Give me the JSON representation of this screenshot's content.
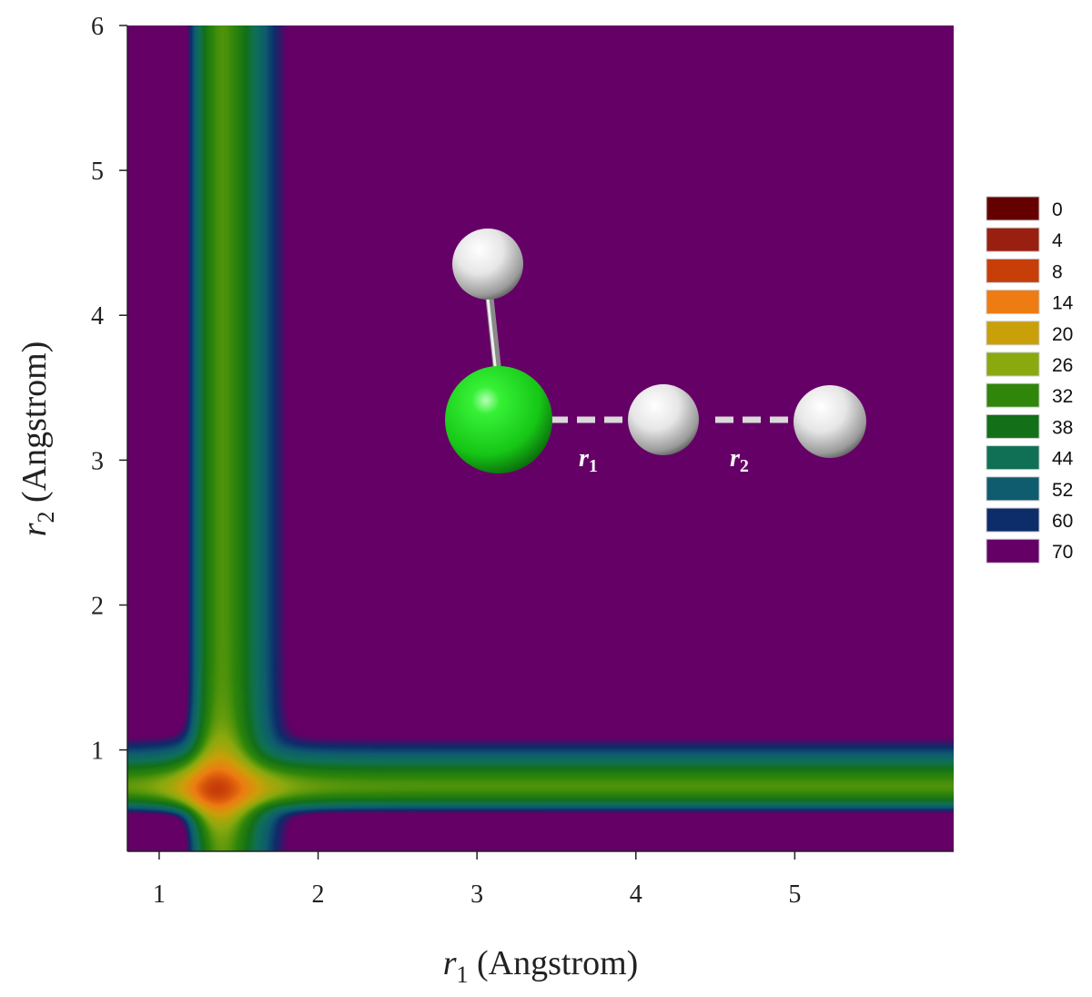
{
  "chart_data": {
    "type": "heatmap",
    "xlabel": {
      "var": "r",
      "sub": "1",
      "unit": " (Angstrom)"
    },
    "ylabel": {
      "var": "r",
      "sub": "2",
      "unit": " (Angstrom)"
    },
    "xlim": [
      0.8,
      6.0
    ],
    "ylim": [
      0.3,
      6.0
    ],
    "xticks": [
      1,
      2,
      3,
      4,
      5
    ],
    "yticks": [
      1,
      2,
      3,
      4,
      5,
      6
    ],
    "legend": {
      "placement": "right",
      "levels": [
        {
          "label": "0",
          "color": "#650000"
        },
        {
          "label": "4",
          "color": "#992010"
        },
        {
          "label": "8",
          "color": "#c83e08"
        },
        {
          "label": "14",
          "color": "#ee7c12"
        },
        {
          "label": "20",
          "color": "#c9a009"
        },
        {
          "label": "26",
          "color": "#8aa90e"
        },
        {
          "label": "32",
          "color": "#2f860a"
        },
        {
          "label": "38",
          "color": "#136f18"
        },
        {
          "label": "44",
          "color": "#0f7055"
        },
        {
          "label": "52",
          "color": "#0e5c6e"
        },
        {
          "label": "60",
          "color": "#0d2c6a"
        },
        {
          "label": "70",
          "color": "#640066"
        }
      ]
    },
    "surface": {
      "description_free_params": true,
      "r1_eq": 1.4,
      "r2_eq": 0.75
    },
    "inset": {
      "atoms": [
        {
          "name": "chlorine-atom",
          "color": "#22dd22"
        },
        {
          "name": "hydrogen-atom-top",
          "color": "#ffffff"
        },
        {
          "name": "hydrogen-atom-middle",
          "color": "#ffffff"
        },
        {
          "name": "hydrogen-atom-right",
          "color": "#ffffff"
        }
      ],
      "labels": [
        {
          "var": "r",
          "sub": "1"
        },
        {
          "var": "r",
          "sub": "2"
        }
      ]
    }
  }
}
